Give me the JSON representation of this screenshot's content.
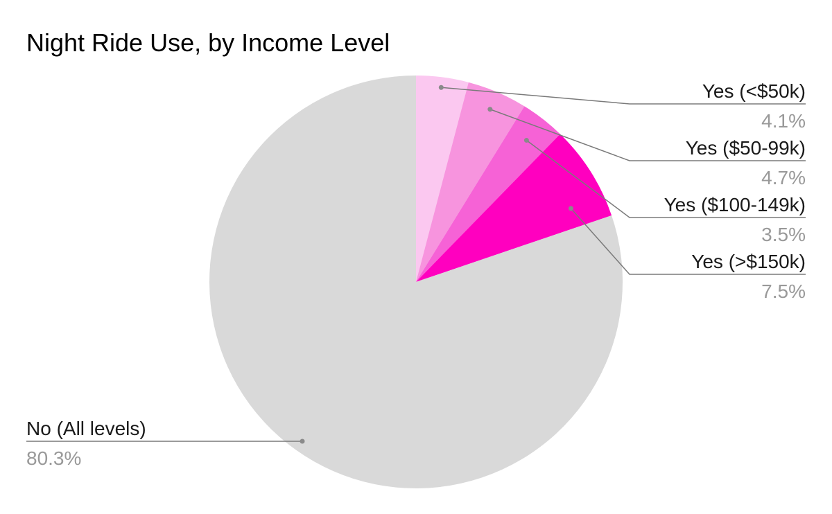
{
  "chart_data": {
    "type": "pie",
    "title": "Night Ride Use, by Income Level",
    "slices": [
      {
        "label": "Yes (<$50k)",
        "value": 4.1,
        "value_label": "4.1%",
        "color": "#fbc8f0",
        "label_side": "right"
      },
      {
        "label": "Yes ($50-99k)",
        "value": 4.7,
        "value_label": "4.7%",
        "color": "#f794de",
        "label_side": "right"
      },
      {
        "label": "Yes ($100-149k)",
        "value": 3.5,
        "value_label": "3.5%",
        "color": "#f662d6",
        "label_side": "right"
      },
      {
        "label": "Yes (>$150k)",
        "value": 7.5,
        "value_label": "7.5%",
        "color": "#ff00bf",
        "label_side": "right"
      },
      {
        "label": "No (All levels)",
        "value": 80.3,
        "value_label": "80.3%",
        "color": "#d9d9d9",
        "label_side": "left"
      }
    ],
    "start_angle": "12 o'clock",
    "direction": "clockwise",
    "legend": "none"
  }
}
